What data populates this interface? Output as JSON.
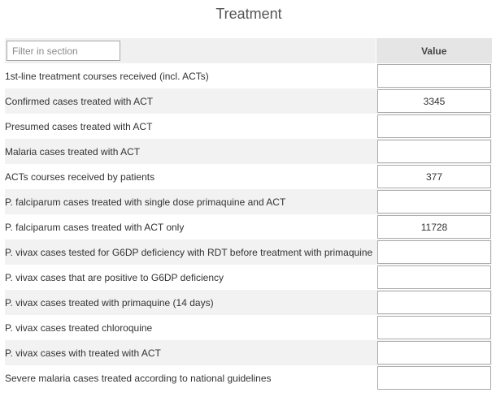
{
  "section": {
    "title": "Treatment"
  },
  "filter": {
    "placeholder": "Filter in section",
    "value": ""
  },
  "table": {
    "value_header": "Value",
    "rows": [
      {
        "label": "1st-line treatment courses received (incl. ACTs)",
        "value": ""
      },
      {
        "label": "Confirmed cases treated with ACT",
        "value": "3345"
      },
      {
        "label": "Presumed cases treated with ACT",
        "value": ""
      },
      {
        "label": "Malaria cases treated with ACT",
        "value": ""
      },
      {
        "label": "ACTs courses received by patients",
        "value": "377"
      },
      {
        "label": "P. falciparum cases treated with single dose primaquine and ACT",
        "value": ""
      },
      {
        "label": "P. falciparum cases treated with ACT only",
        "value": "11728"
      },
      {
        "label": "P. vivax cases tested for G6DP deficiency with RDT before treatment with primaquine",
        "value": ""
      },
      {
        "label": "P. vivax cases that are positive to G6DP deficiency",
        "value": ""
      },
      {
        "label": "P. vivax cases treated with primaquine (14 days)",
        "value": ""
      },
      {
        "label": "P. vivax cases treated chloroquine",
        "value": ""
      },
      {
        "label": "P. vivax cases with treated with ACT",
        "value": ""
      },
      {
        "label": "Severe malaria cases treated according to national guidelines",
        "value": ""
      }
    ]
  }
}
